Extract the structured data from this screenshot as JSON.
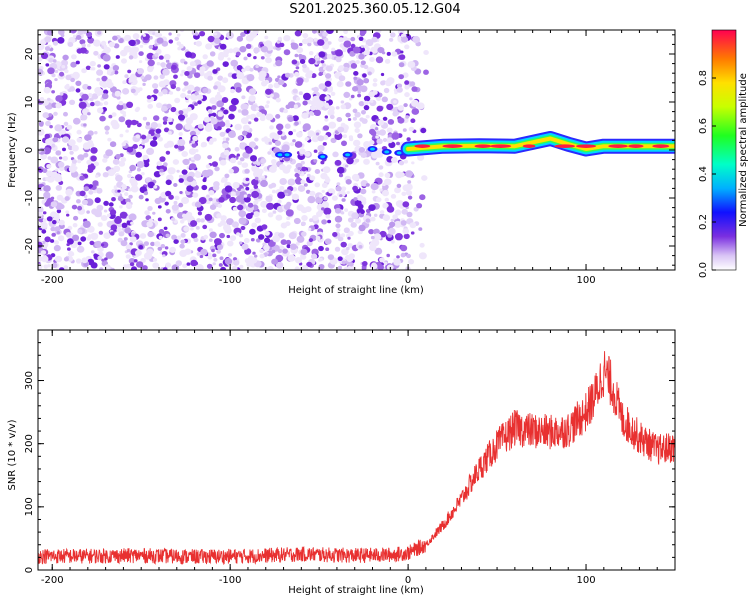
{
  "chart_data": [
    {
      "type": "heatmap",
      "title": "S201.2025.360.05.12.G04",
      "xlabel": "Height of straight line (km)",
      "ylabel": "Frequency (Hz)",
      "xlim": [
        -208,
        150
      ],
      "ylim": [
        -25,
        25
      ],
      "xticks": [
        -200,
        -100,
        0,
        100
      ],
      "xtick_labels": [
        "-200",
        "-100",
        "0",
        "100"
      ],
      "yticks": [
        -20,
        -10,
        0,
        10,
        20
      ],
      "ytick_labels": [
        "-20",
        "-10",
        "0",
        "10",
        "20"
      ],
      "colorbar": {
        "label": "Normalized spectral amplitude",
        "ticks": [
          0.0,
          0.2,
          0.4,
          0.6,
          0.8
        ],
        "tick_labels": [
          "0.0",
          "0.2",
          "0.4",
          "0.6",
          "0.8"
        ],
        "range": [
          0,
          1
        ]
      },
      "features": {
        "noise_region_x": [
          -208,
          5
        ],
        "signal_band_x": [
          0,
          150
        ],
        "signal_band_center_hz": 0.8,
        "signal_peak_amplitude": 0.95
      }
    },
    {
      "type": "line",
      "xlabel": "Height of straight line (km)",
      "ylabel": "SNR (10 * v/v)",
      "xlim": [
        -208,
        150
      ],
      "ylim": [
        0,
        380
      ],
      "xticks": [
        -200,
        -100,
        0,
        100
      ],
      "xtick_labels": [
        "-200",
        "-100",
        "0",
        "100"
      ],
      "yticks": [
        0,
        100,
        200,
        300
      ],
      "ytick_labels": [
        "0",
        "100",
        "200",
        "300"
      ],
      "color": "#e83030",
      "series": [
        {
          "name": "SNR",
          "x": [
            -208,
            -180,
            -150,
            -120,
            -90,
            -60,
            -30,
            -10,
            0,
            10,
            20,
            30,
            40,
            50,
            60,
            70,
            80,
            90,
            100,
            105,
            110,
            115,
            120,
            130,
            140,
            150
          ],
          "y": [
            22,
            22,
            23,
            21,
            22,
            25,
            23,
            24,
            27,
            40,
            72,
            112,
            160,
            198,
            225,
            220,
            218,
            222,
            250,
            275,
            315,
            290,
            240,
            210,
            190,
            195
          ]
        }
      ]
    }
  ]
}
